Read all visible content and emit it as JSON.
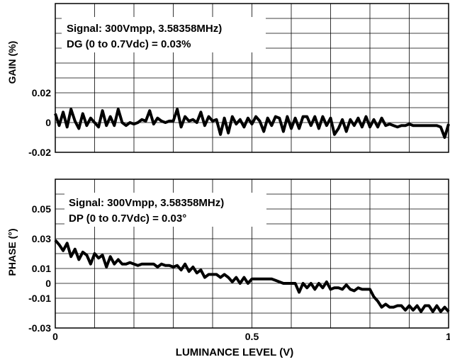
{
  "chart_data": [
    {
      "type": "line",
      "panel": "gain",
      "ylabel": "GAIN (%)",
      "ylim": [
        -0.02,
        0.08
      ],
      "y_ticks": [
        {
          "value": -0.02,
          "label": "-0.02"
        },
        {
          "value": 0,
          "label": "0"
        },
        {
          "value": 0.02,
          "label": "0.02"
        }
      ],
      "xlim": [
        0,
        1
      ],
      "grid": true,
      "annotations": [
        "Signal: 300Vmpp, 3.58358MHz)",
        "DG (0 to 0.7Vdc) = 0.03%"
      ],
      "series": [
        {
          "x": [
            0.0,
            0.01,
            0.02,
            0.03,
            0.04,
            0.05,
            0.06,
            0.07,
            0.08,
            0.09,
            0.1,
            0.11,
            0.12,
            0.13,
            0.14,
            0.15,
            0.16,
            0.17,
            0.18,
            0.19,
            0.2,
            0.21,
            0.22,
            0.23,
            0.24,
            0.25,
            0.26,
            0.27,
            0.28,
            0.29,
            0.3,
            0.31,
            0.32,
            0.33,
            0.34,
            0.35,
            0.36,
            0.37,
            0.38,
            0.39,
            0.4,
            0.41,
            0.42,
            0.43,
            0.44,
            0.45,
            0.46,
            0.47,
            0.48,
            0.49,
            0.5,
            0.51,
            0.52,
            0.53,
            0.54,
            0.55,
            0.56,
            0.57,
            0.58,
            0.59,
            0.6,
            0.61,
            0.62,
            0.63,
            0.64,
            0.65,
            0.66,
            0.67,
            0.68,
            0.69,
            0.7,
            0.71,
            0.72,
            0.73,
            0.74,
            0.75,
            0.76,
            0.77,
            0.78,
            0.79,
            0.8,
            0.81,
            0.82,
            0.83,
            0.84,
            0.85,
            0.86,
            0.87,
            0.88,
            0.89,
            0.9,
            0.91,
            0.92,
            0.93,
            0.94,
            0.95,
            0.96,
            0.97,
            0.98,
            0.99,
            1.0
          ],
          "values": [
            0.006,
            -0.002,
            0.007,
            -0.003,
            0.009,
            0.001,
            -0.004,
            0.006,
            -0.002,
            0.003,
            0.0,
            -0.003,
            0.008,
            -0.002,
            0.004,
            -0.002,
            0.009,
            0.0,
            -0.002,
            0.0,
            -0.001,
            0.0,
            0.002,
            0.001,
            0.008,
            -0.001,
            0.003,
            0.001,
            0.0,
            0.001,
            0.001,
            0.009,
            -0.003,
            0.004,
            0.001,
            0.002,
            0.0,
            0.007,
            -0.002,
            0.004,
            0.001,
            0.002,
            -0.008,
            0.003,
            -0.007,
            0.004,
            -0.001,
            0.002,
            -0.003,
            0.003,
            -0.001,
            0.004,
            0.001,
            -0.006,
            0.003,
            -0.002,
            0.004,
            0.003,
            -0.006,
            0.004,
            -0.004,
            0.003,
            -0.004,
            0.004,
            0.004,
            -0.002,
            0.004,
            -0.004,
            0.004,
            -0.002,
            0.003,
            -0.008,
            -0.004,
            0.002,
            -0.006,
            0.002,
            -0.002,
            0.003,
            -0.003,
            0.004,
            -0.003,
            0.002,
            -0.003,
            0.003,
            -0.002,
            -0.001,
            -0.002,
            -0.003,
            -0.002,
            -0.002,
            -0.001,
            -0.002,
            -0.002,
            -0.002,
            -0.002,
            -0.002,
            -0.002,
            -0.002,
            -0.003,
            -0.01,
            -0.001
          ]
        }
      ]
    },
    {
      "type": "line",
      "panel": "phase",
      "ylabel": "PHASE (°)",
      "ylim": [
        -0.03,
        0.07
      ],
      "y_ticks": [
        {
          "value": -0.03,
          "label": "-0.03"
        },
        {
          "value": -0.01,
          "label": "-0.01"
        },
        {
          "value": 0,
          "label": "0"
        },
        {
          "value": 0.01,
          "label": "0.01"
        },
        {
          "value": 0.03,
          "label": "0.03"
        },
        {
          "value": 0.05,
          "label": "0.05"
        }
      ],
      "xlim": [
        0,
        1
      ],
      "x_ticks": [
        {
          "value": 0,
          "label": "0"
        },
        {
          "value": 0.5,
          "label": "0.5"
        },
        {
          "value": 1,
          "label": "1"
        }
      ],
      "xlabel": "LUMINANCE LEVEL (V)",
      "grid": true,
      "annotations": [
        "Signal: 300Vmpp, 3.58358MHz)",
        "DP (0 to 0.7Vdc) = 0.03°"
      ],
      "series": [
        {
          "x": [
            0.0,
            0.01,
            0.02,
            0.03,
            0.04,
            0.05,
            0.06,
            0.07,
            0.08,
            0.09,
            0.1,
            0.11,
            0.12,
            0.13,
            0.14,
            0.15,
            0.16,
            0.17,
            0.18,
            0.19,
            0.2,
            0.21,
            0.22,
            0.23,
            0.24,
            0.25,
            0.26,
            0.27,
            0.28,
            0.29,
            0.3,
            0.31,
            0.32,
            0.33,
            0.34,
            0.35,
            0.36,
            0.37,
            0.38,
            0.39,
            0.4,
            0.41,
            0.42,
            0.43,
            0.44,
            0.45,
            0.46,
            0.47,
            0.48,
            0.49,
            0.5,
            0.51,
            0.52,
            0.53,
            0.54,
            0.55,
            0.56,
            0.57,
            0.58,
            0.59,
            0.6,
            0.61,
            0.62,
            0.63,
            0.64,
            0.65,
            0.66,
            0.67,
            0.68,
            0.69,
            0.7,
            0.71,
            0.72,
            0.73,
            0.74,
            0.75,
            0.76,
            0.77,
            0.78,
            0.79,
            0.8,
            0.81,
            0.82,
            0.83,
            0.84,
            0.85,
            0.86,
            0.87,
            0.88,
            0.89,
            0.9,
            0.91,
            0.92,
            0.93,
            0.94,
            0.95,
            0.96,
            0.97,
            0.98,
            0.99,
            1.0
          ],
          "values": [
            0.029,
            0.026,
            0.022,
            0.027,
            0.018,
            0.023,
            0.016,
            0.021,
            0.019,
            0.013,
            0.02,
            0.017,
            0.019,
            0.011,
            0.018,
            0.013,
            0.016,
            0.013,
            0.013,
            0.014,
            0.013,
            0.012,
            0.013,
            0.013,
            0.013,
            0.013,
            0.011,
            0.013,
            0.012,
            0.012,
            0.011,
            0.012,
            0.009,
            0.013,
            0.008,
            0.011,
            0.007,
            0.009,
            0.004,
            0.006,
            0.006,
            0.006,
            0.004,
            0.006,
            0.004,
            0.001,
            0.004,
            0.0,
            0.004,
            0.0,
            0.003,
            0.003,
            0.003,
            0.003,
            0.003,
            0.003,
            0.002,
            0.001,
            0.0,
            0.0,
            0.0,
            0.0,
            -0.006,
            0.0,
            -0.003,
            0.0,
            -0.004,
            0.0,
            -0.003,
            0.001,
            -0.004,
            -0.003,
            -0.003,
            -0.004,
            -0.001,
            -0.004,
            -0.005,
            -0.003,
            -0.004,
            -0.004,
            -0.004,
            -0.009,
            -0.012,
            -0.016,
            -0.014,
            -0.016,
            -0.016,
            -0.015,
            -0.015,
            -0.018,
            -0.015,
            -0.018,
            -0.015,
            -0.019,
            -0.015,
            -0.015,
            -0.019,
            -0.015,
            -0.019,
            -0.016,
            -0.019
          ]
        }
      ]
    }
  ]
}
